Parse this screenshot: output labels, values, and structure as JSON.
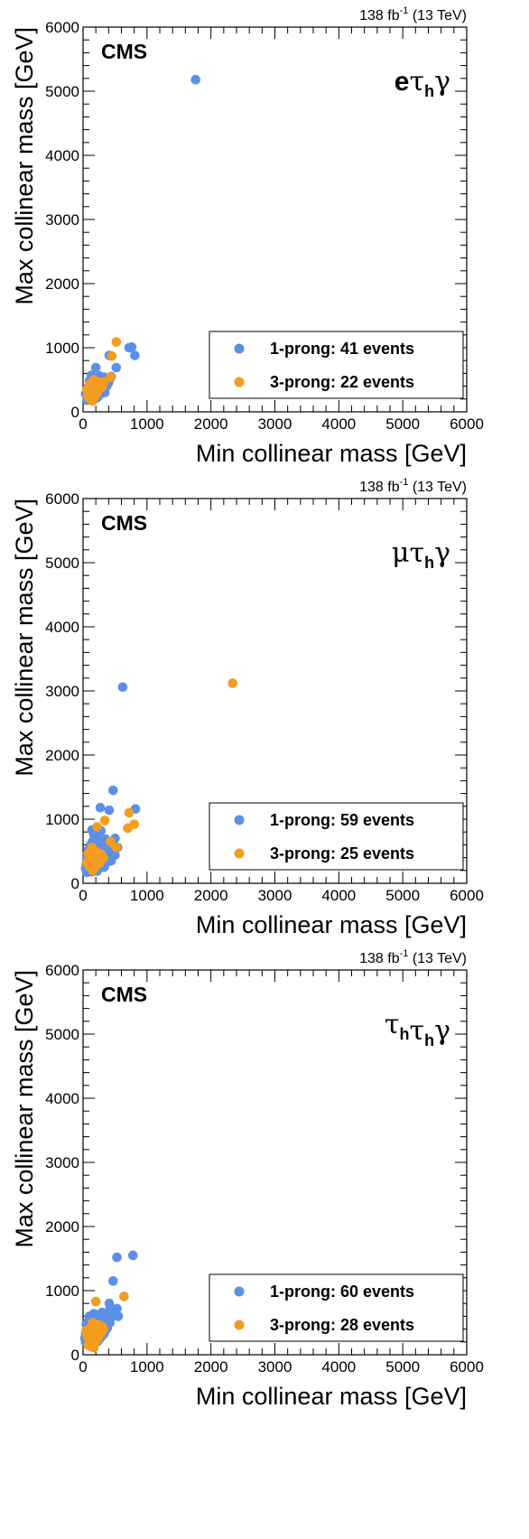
{
  "colors": {
    "one_prong": "#5b8fe8",
    "three_prong": "#f39c1f",
    "axis": "#000000",
    "background": "#ffffff"
  },
  "chart_data": [
    {
      "type": "scatter",
      "experiment_label": "CMS",
      "lumi_value": "138 fb",
      "lumi_exponent": "-1",
      "lumi_energy": " (13 TeV)",
      "channel": {
        "lead": "e",
        "lead_style": "latin",
        "parts": [
          "τ",
          "h",
          "γ"
        ]
      },
      "xlabel": "Min collinear mass [GeV]",
      "ylabel": "Max collinear mass [GeV]",
      "xlim": [
        0,
        6000
      ],
      "ylim": [
        0,
        6000
      ],
      "xticks": [
        "0",
        "1000",
        "2000",
        "3000",
        "4000",
        "5000",
        "6000"
      ],
      "yticks": [
        "0",
        "1000",
        "2000",
        "3000",
        "4000",
        "5000",
        "6000"
      ],
      "legend_position": "bottom-right",
      "series": [
        {
          "name": "1-prong: 41 events",
          "color": "#5b8fe8",
          "points": [
            [
              1760,
              5180
            ],
            [
              720,
              1000
            ],
            [
              760,
              1010
            ],
            [
              810,
              880
            ],
            [
              410,
              880
            ],
            [
              520,
              690
            ],
            [
              200,
              690
            ],
            [
              130,
              570
            ],
            [
              260,
              560
            ],
            [
              330,
              540
            ],
            [
              420,
              510
            ],
            [
              270,
              520
            ],
            [
              100,
              480
            ],
            [
              170,
              460
            ],
            [
              220,
              430
            ],
            [
              310,
              440
            ],
            [
              370,
              400
            ],
            [
              140,
              380
            ],
            [
              240,
              380
            ],
            [
              180,
              340
            ],
            [
              60,
              330
            ],
            [
              110,
              310
            ],
            [
              210,
              300
            ],
            [
              280,
              320
            ],
            [
              330,
              350
            ],
            [
              80,
              250
            ],
            [
              150,
              250
            ],
            [
              230,
              230
            ],
            [
              190,
              200
            ],
            [
              120,
              190
            ],
            [
              60,
              180
            ],
            [
              260,
              270
            ],
            [
              340,
              300
            ],
            [
              400,
              460
            ],
            [
              440,
              550
            ],
            [
              160,
              520
            ],
            [
              90,
              400
            ],
            [
              40,
              280
            ],
            [
              300,
              390
            ],
            [
              250,
              450
            ],
            [
              180,
              410
            ]
          ]
        },
        {
          "name": "3-prong: 22 events",
          "color": "#f39c1f",
          "points": [
            [
              520,
              1090
            ],
            [
              450,
              870
            ],
            [
              430,
              540
            ],
            [
              330,
              470
            ],
            [
              260,
              460
            ],
            [
              170,
              500
            ],
            [
              110,
              440
            ],
            [
              200,
              400
            ],
            [
              90,
              370
            ],
            [
              150,
              330
            ],
            [
              60,
              350
            ],
            [
              130,
              280
            ],
            [
              210,
              270
            ],
            [
              120,
              230
            ],
            [
              170,
              210
            ],
            [
              100,
              200
            ],
            [
              150,
              170
            ],
            [
              230,
              310
            ],
            [
              70,
              250
            ],
            [
              300,
              390
            ],
            [
              180,
              450
            ],
            [
              250,
              360
            ]
          ]
        }
      ]
    },
    {
      "type": "scatter",
      "experiment_label": "CMS",
      "lumi_value": "138 fb",
      "lumi_exponent": "-1",
      "lumi_energy": " (13 TeV)",
      "channel": {
        "lead": "μ",
        "lead_style": "greek",
        "parts": [
          "τ",
          "h",
          "γ"
        ]
      },
      "xlabel": "Min collinear mass [GeV]",
      "ylabel": "Max collinear mass [GeV]",
      "xlim": [
        0,
        6000
      ],
      "ylim": [
        0,
        6000
      ],
      "xticks": [
        "0",
        "1000",
        "2000",
        "3000",
        "4000",
        "5000",
        "6000"
      ],
      "yticks": [
        "0",
        "1000",
        "2000",
        "3000",
        "4000",
        "5000",
        "6000"
      ],
      "legend_position": "bottom-right",
      "series": [
        {
          "name": "1-prong: 59 events",
          "color": "#5b8fe8",
          "points": [
            [
              620,
              3060
            ],
            [
              470,
              1450
            ],
            [
              820,
              1160
            ],
            [
              270,
              1180
            ],
            [
              410,
              1140
            ],
            [
              140,
              830
            ],
            [
              280,
              820
            ],
            [
              170,
              760
            ],
            [
              500,
              700
            ],
            [
              350,
              690
            ],
            [
              240,
              640
            ],
            [
              410,
              640
            ],
            [
              120,
              600
            ],
            [
              300,
              580
            ],
            [
              200,
              540
            ],
            [
              80,
              520
            ],
            [
              380,
              520
            ],
            [
              260,
              470
            ],
            [
              150,
              480
            ],
            [
              330,
              450
            ],
            [
              60,
              440
            ],
            [
              210,
              420
            ],
            [
              420,
              430
            ],
            [
              110,
              400
            ],
            [
              280,
              390
            ],
            [
              180,
              360
            ],
            [
              360,
              380
            ],
            [
              60,
              350
            ],
            [
              140,
              330
            ],
            [
              240,
              320
            ],
            [
              90,
              300
            ],
            [
              320,
              300
            ],
            [
              190,
              280
            ],
            [
              120,
              260
            ],
            [
              40,
              230
            ],
            [
              260,
              250
            ],
            [
              160,
              220
            ],
            [
              80,
              200
            ],
            [
              220,
              190
            ],
            [
              140,
              180
            ],
            [
              60,
              170
            ],
            [
              300,
              340
            ],
            [
              400,
              400
            ],
            [
              460,
              480
            ],
            [
              540,
              560
            ],
            [
              230,
              700
            ],
            [
              150,
              650
            ],
            [
              350,
              600
            ],
            [
              100,
              470
            ],
            [
              190,
              610
            ],
            [
              270,
              530
            ],
            [
              440,
              350
            ],
            [
              500,
              440
            ],
            [
              330,
              250
            ],
            [
              210,
              240
            ],
            [
              50,
              290
            ],
            [
              130,
              430
            ],
            [
              370,
              330
            ],
            [
              250,
              420
            ]
          ]
        },
        {
          "name": "3-prong: 25 events",
          "color": "#f39c1f",
          "points": [
            [
              2340,
              3120
            ],
            [
              800,
              920
            ],
            [
              720,
              1100
            ],
            [
              700,
              860
            ],
            [
              340,
              980
            ],
            [
              220,
              880
            ],
            [
              430,
              650
            ],
            [
              520,
              560
            ],
            [
              140,
              560
            ],
            [
              80,
              470
            ],
            [
              200,
              500
            ],
            [
              290,
              450
            ],
            [
              120,
              400
            ],
            [
              240,
              370
            ],
            [
              170,
              340
            ],
            [
              60,
              320
            ],
            [
              130,
              300
            ],
            [
              210,
              280
            ],
            [
              100,
              260
            ],
            [
              180,
              240
            ],
            [
              260,
              320
            ],
            [
              150,
              200
            ],
            [
              320,
              390
            ],
            [
              230,
              420
            ],
            [
              90,
              360
            ]
          ]
        }
      ]
    },
    {
      "type": "scatter",
      "experiment_label": "CMS",
      "lumi_value": "138 fb",
      "lumi_exponent": "-1",
      "lumi_energy": " (13 TeV)",
      "channel": {
        "lead": "τ",
        "lead_style": "greek",
        "lead_sub": "h",
        "parts": [
          "τ",
          "h",
          "γ"
        ]
      },
      "xlabel": "Min collinear mass [GeV]",
      "ylabel": "Max collinear mass [GeV]",
      "xlim": [
        0,
        6000
      ],
      "ylim": [
        0,
        6000
      ],
      "xticks": [
        "0",
        "1000",
        "2000",
        "3000",
        "4000",
        "5000",
        "6000"
      ],
      "yticks": [
        "0",
        "1000",
        "2000",
        "3000",
        "4000",
        "5000",
        "6000"
      ],
      "legend_position": "bottom-right",
      "series": [
        {
          "name": "1-prong: 60 events",
          "color": "#5b8fe8",
          "points": [
            [
              780,
              1550
            ],
            [
              530,
              1520
            ],
            [
              470,
              1150
            ],
            [
              410,
              800
            ],
            [
              530,
              720
            ],
            [
              550,
              600
            ],
            [
              380,
              640
            ],
            [
              300,
              660
            ],
            [
              230,
              620
            ],
            [
              150,
              570
            ],
            [
              360,
              560
            ],
            [
              90,
              540
            ],
            [
              270,
              530
            ],
            [
              190,
              500
            ],
            [
              420,
              500
            ],
            [
              120,
              460
            ],
            [
              320,
              460
            ],
            [
              60,
              430
            ],
            [
              220,
              430
            ],
            [
              140,
              400
            ],
            [
              290,
              400
            ],
            [
              380,
              420
            ],
            [
              80,
              380
            ],
            [
              200,
              370
            ],
            [
              110,
              340
            ],
            [
              250,
              340
            ],
            [
              40,
              320
            ],
            [
              160,
              310
            ],
            [
              330,
              330
            ],
            [
              70,
              290
            ],
            [
              210,
              280
            ],
            [
              130,
              260
            ],
            [
              270,
              260
            ],
            [
              60,
              240
            ],
            [
              180,
              230
            ],
            [
              100,
              210
            ],
            [
              230,
              210
            ],
            [
              150,
              190
            ],
            [
              40,
              200
            ],
            [
              80,
              170
            ],
            [
              300,
              300
            ],
            [
              350,
              380
            ],
            [
              460,
              600
            ],
            [
              420,
              700
            ],
            [
              250,
              590
            ],
            [
              170,
              640
            ],
            [
              100,
              600
            ],
            [
              50,
              470
            ],
            [
              120,
              520
            ],
            [
              200,
              560
            ],
            [
              280,
              480
            ],
            [
              340,
              600
            ],
            [
              470,
              640
            ],
            [
              390,
              480
            ],
            [
              30,
              260
            ],
            [
              140,
              350
            ],
            [
              240,
              420
            ],
            [
              190,
              290
            ],
            [
              310,
              360
            ],
            [
              90,
              310
            ]
          ]
        },
        {
          "name": "3-prong: 28 events",
          "color": "#f39c1f",
          "points": [
            [
              200,
              830
            ],
            [
              640,
              910
            ],
            [
              150,
              500
            ],
            [
              230,
              470
            ],
            [
              300,
              440
            ],
            [
              120,
              420
            ],
            [
              70,
              380
            ],
            [
              180,
              400
            ],
            [
              260,
              390
            ],
            [
              100,
              350
            ],
            [
              210,
              350
            ],
            [
              150,
              320
            ],
            [
              60,
              300
            ],
            [
              130,
              280
            ],
            [
              190,
              280
            ],
            [
              240,
              300
            ],
            [
              90,
              250
            ],
            [
              160,
              230
            ],
            [
              110,
              200
            ],
            [
              200,
              210
            ],
            [
              140,
              170
            ],
            [
              80,
              150
            ],
            [
              120,
              130
            ],
            [
              170,
              110
            ],
            [
              50,
              380
            ],
            [
              280,
              330
            ],
            [
              230,
              250
            ],
            [
              320,
              390
            ]
          ]
        }
      ]
    }
  ]
}
